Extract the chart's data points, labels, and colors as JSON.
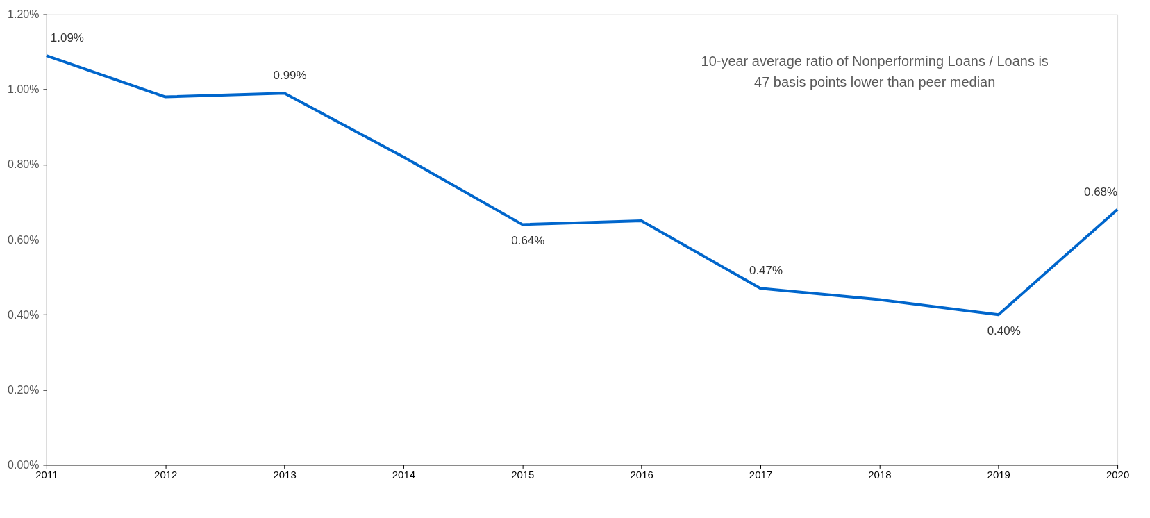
{
  "chart_data": {
    "type": "line",
    "x": [
      2011,
      2012,
      2013,
      2014,
      2015,
      2016,
      2017,
      2018,
      2019,
      2020
    ],
    "series": [
      {
        "color": "#0066cc",
        "values": [
          1.09,
          0.98,
          0.99,
          0.82,
          0.64,
          0.65,
          0.47,
          0.44,
          0.4,
          0.68
        ],
        "value_labels": [
          "1.09%",
          null,
          "0.99%",
          null,
          "0.64%",
          null,
          "0.47%",
          null,
          "0.40%",
          "0.68%"
        ]
      }
    ],
    "xlim": [
      2011,
      2020
    ],
    "xticks": [
      2011,
      2012,
      2013,
      2014,
      2015,
      2016,
      2017,
      2018,
      2019,
      2020
    ],
    "ylim": [
      0,
      1.2
    ],
    "yticks": [
      {
        "value": 0,
        "label": "0.00%"
      },
      {
        "value": 0.2,
        "label": "0.20%"
      },
      {
        "value": 0.4,
        "label": "0.40%"
      },
      {
        "value": 0.6,
        "label": "0.60%"
      },
      {
        "value": 0.8,
        "label": "0.80%"
      },
      {
        "value": 1.0,
        "label": "1.00%"
      },
      {
        "value": 1.2,
        "label": "1.20%"
      }
    ],
    "grid": false,
    "marker": "none",
    "line_style": "solid",
    "annotations": [
      "10-year average ratio of Nonperforming Loans / Loans is 47 basis points lower than peer median"
    ]
  }
}
